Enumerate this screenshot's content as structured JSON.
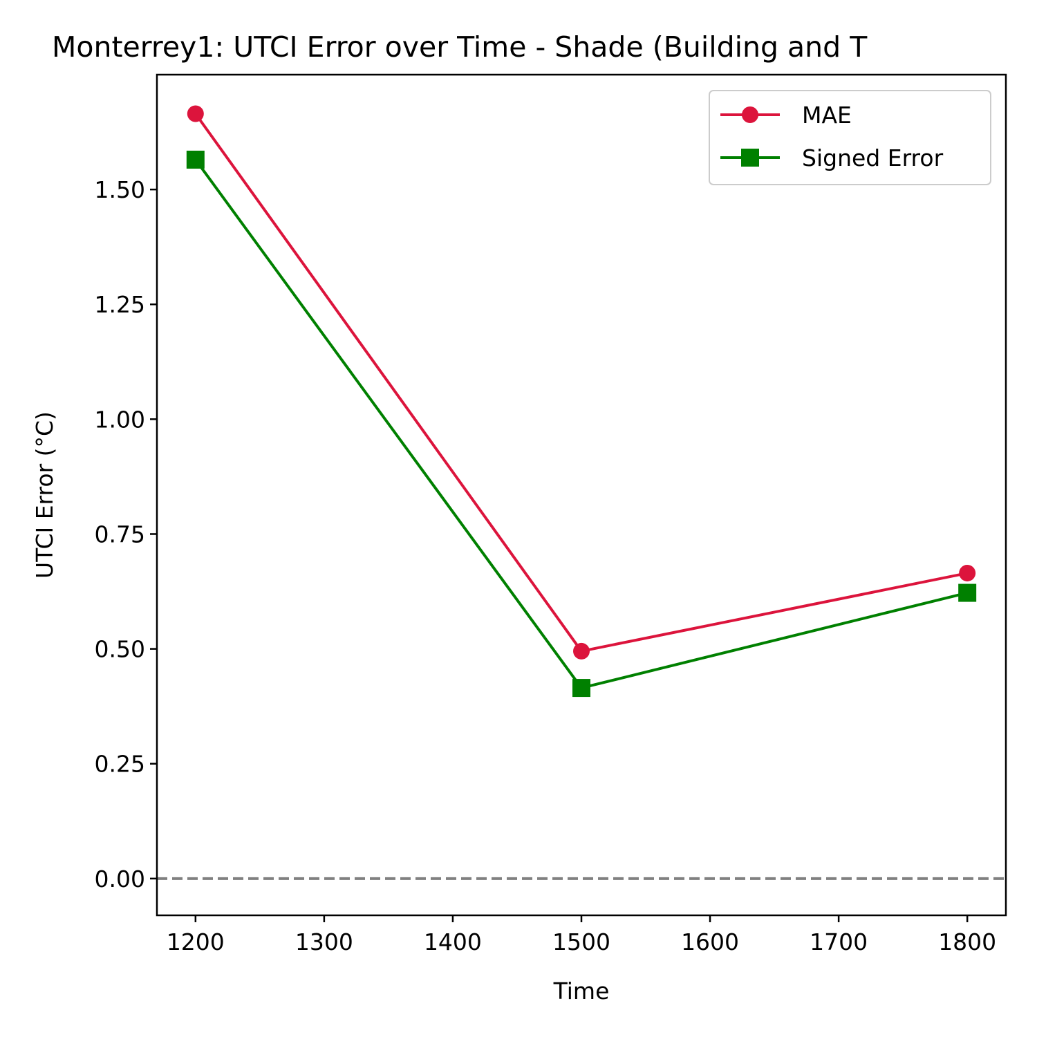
{
  "chart_data": {
    "type": "line",
    "title": "Monterrey1: UTCI Error over Time - Shade (Building and T",
    "xlabel": "Time",
    "ylabel": "UTCI Error (°C)",
    "x": [
      1200,
      1500,
      1800
    ],
    "xlim": [
      1170,
      1830
    ],
    "ylim": [
      -0.08,
      1.75
    ],
    "xticks": [
      1200,
      1300,
      1400,
      1500,
      1600,
      1700,
      1800
    ],
    "xtick_labels": [
      "1200",
      "1300",
      "1400",
      "1500",
      "1600",
      "1700",
      "1800"
    ],
    "yticks": [
      0,
      0.25,
      0.5,
      0.75,
      1.0,
      1.25,
      1.5
    ],
    "ytick_labels": [
      "0.00",
      "0.25",
      "0.50",
      "0.75",
      "1.00",
      "1.25",
      "1.50"
    ],
    "series": [
      {
        "name": "MAE",
        "values": [
          1.665,
          0.495,
          0.665
        ],
        "color": "#dc143c",
        "marker": "circle"
      },
      {
        "name": "Signed Error",
        "values": [
          1.565,
          0.415,
          0.622
        ],
        "color": "#008000",
        "marker": "square"
      }
    ],
    "reference_line": {
      "y": 0,
      "style": "dashed",
      "color": "#808080"
    },
    "legend_position": "top-right",
    "grid": false
  }
}
